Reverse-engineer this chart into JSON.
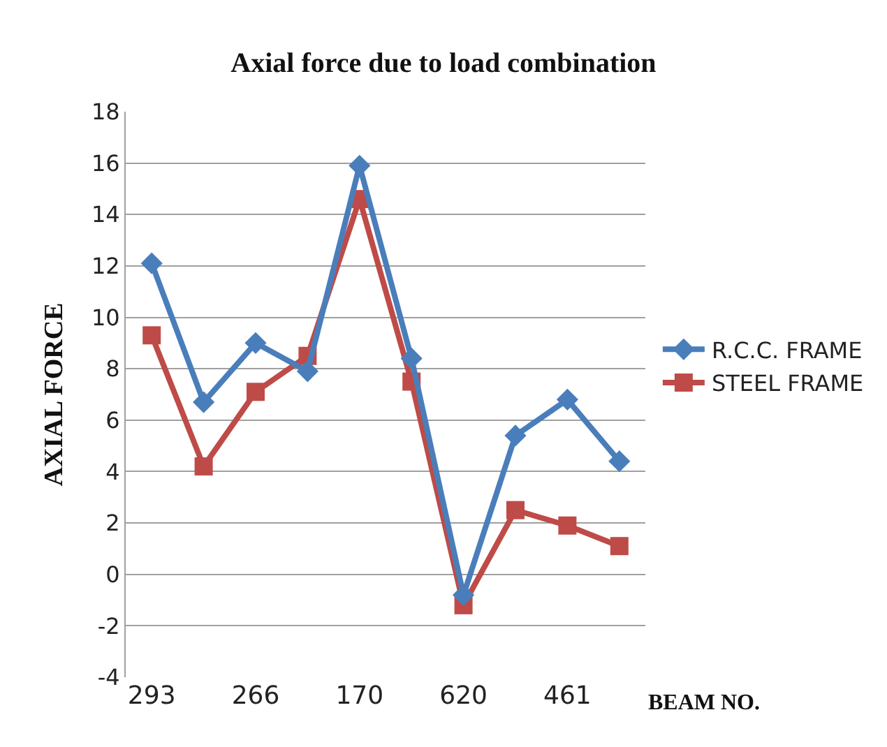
{
  "chart_data": {
    "type": "line",
    "title": "Axial force due to load combination",
    "xlabel": "BEAM NO.",
    "ylabel": "AXIAL FORCE",
    "categories": [
      "293",
      null,
      "266",
      null,
      "170",
      null,
      "620",
      null,
      "461",
      null
    ],
    "series": [
      {
        "name": "R.C.C. FRAME",
        "color": "#4a7ebb",
        "marker": "diamond",
        "values": [
          12.1,
          6.7,
          9.0,
          7.9,
          15.9,
          8.4,
          -0.8,
          5.4,
          6.8,
          4.4
        ]
      },
      {
        "name": "STEEL FRAME",
        "color": "#be4b48",
        "marker": "square",
        "values": [
          9.3,
          4.2,
          7.1,
          8.5,
          14.6,
          7.5,
          -1.2,
          2.5,
          1.9,
          1.1
        ]
      }
    ],
    "ylim": [
      -4,
      18
    ],
    "yticks": [
      -4,
      -2,
      0,
      2,
      4,
      6,
      8,
      10,
      12,
      14,
      16,
      18
    ],
    "grid": "y",
    "legend": "right"
  }
}
